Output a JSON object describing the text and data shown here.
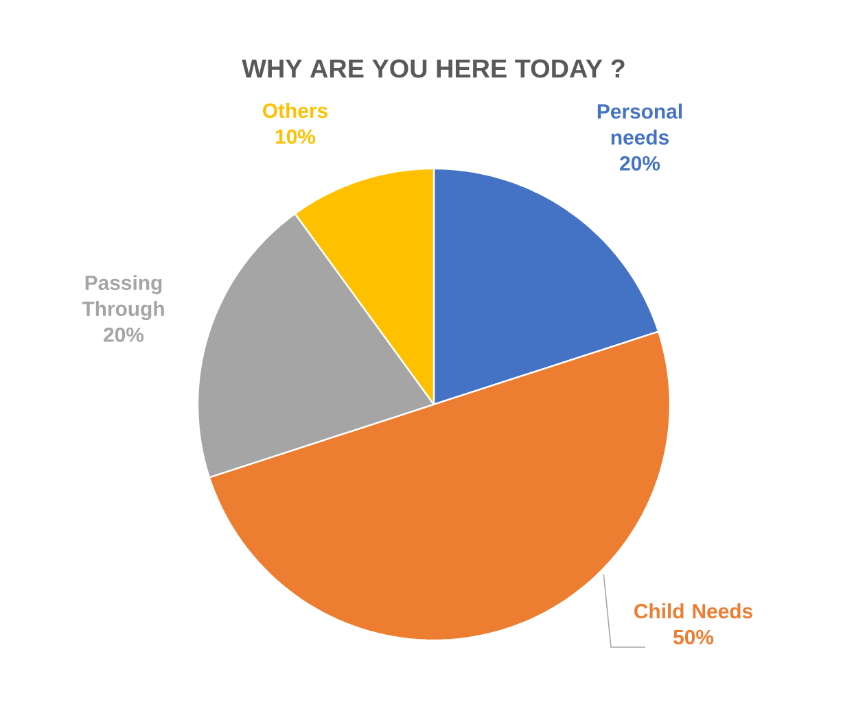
{
  "chart_data": {
    "type": "pie",
    "title": "WHY ARE YOU HERE TODAY ?",
    "categories": [
      "Personal needs",
      "Child Needs",
      "Passing Through",
      "Others"
    ],
    "values": [
      20,
      50,
      20,
      10
    ],
    "colors": [
      "#4472c4",
      "#ed7d31",
      "#a5a5a5",
      "#ffc000"
    ],
    "value_labels": [
      "20%",
      "50%",
      "20%",
      "10%"
    ]
  }
}
